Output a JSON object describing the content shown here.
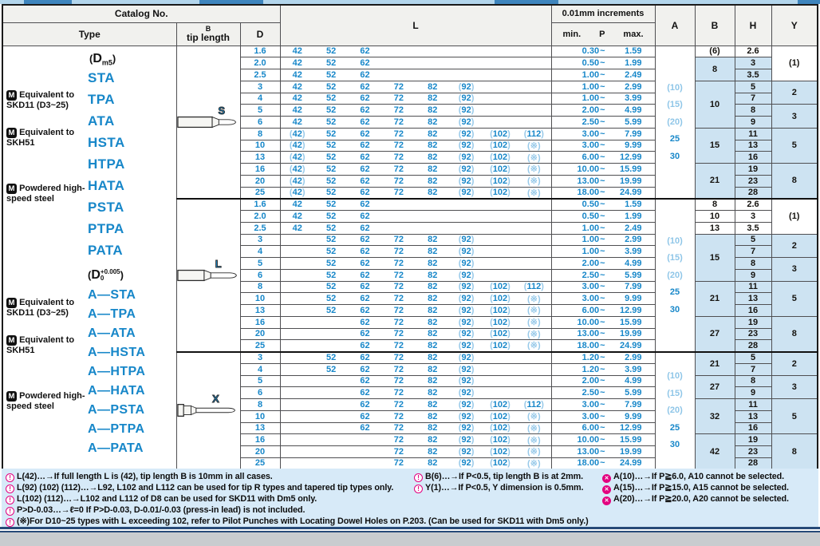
{
  "header": {
    "catalog_no": "Catalog No.",
    "type": "Type",
    "tip_length_top": "B",
    "tip_length_bottom": "tip length",
    "d": "D",
    "l": "L",
    "increments": "0.01mm increments",
    "min_label": "min.",
    "p_label": "P",
    "max_label": "max.",
    "a": "A",
    "b": "B",
    "h": "H",
    "y": "Y"
  },
  "type_column": {
    "groups": [
      {
        "dim_note": {
          "pre": "(",
          "base": "D",
          "sub": "m5",
          "post": ")"
        },
        "materials": [
          {
            "badge": "M",
            "label": "Equivalent to SKD11 (D3~25)",
            "types": [
              "STA",
              "TPA",
              "ATA"
            ]
          },
          {
            "badge": "M",
            "label": "Equivalent to SKH51",
            "types": [
              "HSTA",
              "HTPA",
              "HATA"
            ]
          },
          {
            "badge": "M",
            "label": "Powdered high-speed steel",
            "types": [
              "PSTA",
              "PTPA",
              "PATA"
            ]
          }
        ]
      },
      {
        "dim_note": {
          "pre": "(",
          "base": "D",
          "sup": "+0.005",
          "sub": "0",
          "post": ")"
        },
        "materials": [
          {
            "badge": "M",
            "label": "Equivalent to SKD11 (D3~25)",
            "types": [
              "A—STA",
              "A—TPA",
              "A—ATA"
            ]
          },
          {
            "badge": "M",
            "label": "Equivalent to SKH51",
            "types": [
              "A—HSTA",
              "A—HTPA",
              "A—HATA"
            ]
          },
          {
            "badge": "M",
            "label": "Powdered high-speed steel",
            "types": [
              "A—PSTA",
              "A—PTPA",
              "A—PATA"
            ]
          }
        ]
      }
    ]
  },
  "sections": [
    {
      "tip": "S",
      "a": [
        "(10)",
        "(15)",
        "(20)",
        "25",
        "30"
      ],
      "b": [
        {
          "v": "(6)",
          "s": 1,
          "w": true
        },
        {
          "v": "8",
          "s": 2
        },
        {
          "v": "10",
          "s": 4
        },
        {
          "v": "15",
          "s": 3
        },
        {
          "v": "21",
          "s": 3
        }
      ],
      "y": [
        {
          "v": "(1)",
          "s": 3,
          "w": true
        },
        {
          "v": "2",
          "s": 2
        },
        {
          "v": "3",
          "s": 2
        },
        {
          "v": "5",
          "s": 3
        },
        {
          "v": "8",
          "s": 3
        }
      ],
      "rows": [
        {
          "d": "1.6",
          "l": [
            "42",
            "52",
            "62",
            "",
            "",
            "",
            "",
            ""
          ],
          "p": [
            "0.30",
            "1.59"
          ],
          "h": "2.6",
          "hw": true
        },
        {
          "d": "2.0",
          "l": [
            "42",
            "52",
            "62",
            "",
            "",
            "",
            "",
            ""
          ],
          "p": [
            "0.50",
            "1.99"
          ],
          "h": "3"
        },
        {
          "d": "2.5",
          "l": [
            "42",
            "52",
            "62",
            "",
            "",
            "",
            "",
            ""
          ],
          "p": [
            "1.00",
            "2.49"
          ],
          "h": "3.5"
        },
        {
          "d": "3",
          "l": [
            "42",
            "52",
            "62",
            "72",
            "82",
            "(92)",
            "",
            ""
          ],
          "p": [
            "1.00",
            "2.99"
          ],
          "h": "5"
        },
        {
          "d": "4",
          "l": [
            "42",
            "52",
            "62",
            "72",
            "82",
            "(92)",
            "",
            ""
          ],
          "p": [
            "1.00",
            "3.99"
          ],
          "h": "7"
        },
        {
          "d": "5",
          "l": [
            "42",
            "52",
            "62",
            "72",
            "82",
            "(92)",
            "",
            ""
          ],
          "p": [
            "2.00",
            "4.99"
          ],
          "h": "8"
        },
        {
          "d": "6",
          "l": [
            "42",
            "52",
            "62",
            "72",
            "82",
            "(92)",
            "",
            ""
          ],
          "p": [
            "2.50",
            "5.99"
          ],
          "h": "9"
        },
        {
          "d": "8",
          "l": [
            "(42)",
            "52",
            "62",
            "72",
            "82",
            "(92)",
            "(102)",
            "(112)"
          ],
          "p": [
            "3.00",
            "7.99"
          ],
          "h": "11"
        },
        {
          "d": "10",
          "l": [
            "(42)",
            "52",
            "62",
            "72",
            "82",
            "(92)",
            "(102)",
            "(※)"
          ],
          "p": [
            "3.00",
            "9.99"
          ],
          "h": "13"
        },
        {
          "d": "13",
          "l": [
            "(42)",
            "52",
            "62",
            "72",
            "82",
            "(92)",
            "(102)",
            "(※)"
          ],
          "p": [
            "6.00",
            "12.99"
          ],
          "h": "16"
        },
        {
          "d": "16",
          "l": [
            "(42)",
            "52",
            "62",
            "72",
            "82",
            "(92)",
            "(102)",
            "(※)"
          ],
          "p": [
            "10.00",
            "15.99"
          ],
          "h": "19"
        },
        {
          "d": "20",
          "l": [
            "(42)",
            "52",
            "62",
            "72",
            "82",
            "(92)",
            "(102)",
            "(※)"
          ],
          "p": [
            "13.00",
            "19.99"
          ],
          "h": "23"
        },
        {
          "d": "25",
          "l": [
            "(42)",
            "52",
            "62",
            "72",
            "82",
            "(92)",
            "(102)",
            "(※)"
          ],
          "p": [
            "18.00",
            "24.99"
          ],
          "h": "28"
        }
      ]
    },
    {
      "tip": "L",
      "a": [
        "(10)",
        "(15)",
        "(20)",
        "25",
        "30"
      ],
      "b": [
        {
          "v": "8",
          "s": 1,
          "w": true
        },
        {
          "v": "10",
          "s": 1,
          "w": true
        },
        {
          "v": "13",
          "s": 1,
          "w": true
        },
        {
          "v": "15",
          "s": 4
        },
        {
          "v": "21",
          "s": 3
        },
        {
          "v": "27",
          "s": 3
        }
      ],
      "y": [
        {
          "v": "(1)",
          "s": 3,
          "w": true
        },
        {
          "v": "2",
          "s": 2
        },
        {
          "v": "3",
          "s": 2
        },
        {
          "v": "5",
          "s": 3
        },
        {
          "v": "8",
          "s": 3
        }
      ],
      "rows": [
        {
          "d": "1.6",
          "l": [
            "42",
            "52",
            "62",
            "",
            "",
            "",
            "",
            ""
          ],
          "p": [
            "0.50",
            "1.59"
          ],
          "h": "2.6",
          "hw": true
        },
        {
          "d": "2.0",
          "l": [
            "42",
            "52",
            "62",
            "",
            "",
            "",
            "",
            ""
          ],
          "p": [
            "0.50",
            "1.99"
          ],
          "h": "3",
          "hw": true
        },
        {
          "d": "2.5",
          "l": [
            "42",
            "52",
            "62",
            "",
            "",
            "",
            "",
            ""
          ],
          "p": [
            "1.00",
            "2.49"
          ],
          "h": "3.5",
          "hw": true
        },
        {
          "d": "3",
          "l": [
            "",
            "52",
            "62",
            "72",
            "82",
            "(92)",
            "",
            ""
          ],
          "p": [
            "1.00",
            "2.99"
          ],
          "h": "5"
        },
        {
          "d": "4",
          "l": [
            "",
            "52",
            "62",
            "72",
            "82",
            "(92)",
            "",
            ""
          ],
          "p": [
            "1.00",
            "3.99"
          ],
          "h": "7"
        },
        {
          "d": "5",
          "l": [
            "",
            "52",
            "62",
            "72",
            "82",
            "(92)",
            "",
            ""
          ],
          "p": [
            "2.00",
            "4.99"
          ],
          "h": "8"
        },
        {
          "d": "6",
          "l": [
            "",
            "52",
            "62",
            "72",
            "82",
            "(92)",
            "",
            ""
          ],
          "p": [
            "2.50",
            "5.99"
          ],
          "h": "9"
        },
        {
          "d": "8",
          "l": [
            "",
            "52",
            "62",
            "72",
            "82",
            "(92)",
            "(102)",
            "(112)"
          ],
          "p": [
            "3.00",
            "7.99"
          ],
          "h": "11"
        },
        {
          "d": "10",
          "l": [
            "",
            "52",
            "62",
            "72",
            "82",
            "(92)",
            "(102)",
            "(※)"
          ],
          "p": [
            "3.00",
            "9.99"
          ],
          "h": "13"
        },
        {
          "d": "13",
          "l": [
            "",
            "52",
            "62",
            "72",
            "82",
            "(92)",
            "(102)",
            "(※)"
          ],
          "p": [
            "6.00",
            "12.99"
          ],
          "h": "16"
        },
        {
          "d": "16",
          "l": [
            "",
            "",
            "62",
            "72",
            "82",
            "(92)",
            "(102)",
            "(※)"
          ],
          "p": [
            "10.00",
            "15.99"
          ],
          "h": "19"
        },
        {
          "d": "20",
          "l": [
            "",
            "",
            "62",
            "72",
            "82",
            "(92)",
            "(102)",
            "(※)"
          ],
          "p": [
            "13.00",
            "19.99"
          ],
          "h": "23"
        },
        {
          "d": "25",
          "l": [
            "",
            "",
            "62",
            "72",
            "82",
            "(92)",
            "(102)",
            "(※)"
          ],
          "p": [
            "18.00",
            "24.99"
          ],
          "h": "28"
        }
      ]
    },
    {
      "tip": "X",
      "a": [
        "(10)",
        "(15)",
        "(20)",
        "25",
        "30"
      ],
      "b": [
        {
          "v": "21",
          "s": 2
        },
        {
          "v": "27",
          "s": 2
        },
        {
          "v": "32",
          "s": 3
        },
        {
          "v": "42",
          "s": 3
        }
      ],
      "y": [
        {
          "v": "2",
          "s": 2
        },
        {
          "v": "3",
          "s": 2
        },
        {
          "v": "5",
          "s": 3
        },
        {
          "v": "8",
          "s": 3
        }
      ],
      "rows": [
        {
          "d": "3",
          "l": [
            "",
            "52",
            "62",
            "72",
            "82",
            "(92)",
            "",
            ""
          ],
          "p": [
            "1.20",
            "2.99"
          ],
          "h": "5"
        },
        {
          "d": "4",
          "l": [
            "",
            "52",
            "62",
            "72",
            "82",
            "(92)",
            "",
            ""
          ],
          "p": [
            "1.20",
            "3.99"
          ],
          "h": "7"
        },
        {
          "d": "5",
          "l": [
            "",
            "",
            "62",
            "72",
            "82",
            "(92)",
            "",
            ""
          ],
          "p": [
            "2.00",
            "4.99"
          ],
          "h": "8"
        },
        {
          "d": "6",
          "l": [
            "",
            "",
            "62",
            "72",
            "82",
            "(92)",
            "",
            ""
          ],
          "p": [
            "2.50",
            "5.99"
          ],
          "h": "9"
        },
        {
          "d": "8",
          "l": [
            "",
            "",
            "62",
            "72",
            "82",
            "(92)",
            "(102)",
            "(112)"
          ],
          "p": [
            "3.00",
            "7.99"
          ],
          "h": "11"
        },
        {
          "d": "10",
          "l": [
            "",
            "",
            "62",
            "72",
            "82",
            "(92)",
            "(102)",
            "(※)"
          ],
          "p": [
            "3.00",
            "9.99"
          ],
          "h": "13"
        },
        {
          "d": "13",
          "l": [
            "",
            "",
            "62",
            "72",
            "82",
            "(92)",
            "(102)",
            "(※)"
          ],
          "p": [
            "6.00",
            "12.99"
          ],
          "h": "16"
        },
        {
          "d": "16",
          "l": [
            "",
            "",
            "",
            "72",
            "82",
            "(92)",
            "(102)",
            "(※)"
          ],
          "p": [
            "10.00",
            "15.99"
          ],
          "h": "19"
        },
        {
          "d": "20",
          "l": [
            "",
            "",
            "",
            "72",
            "82",
            "(92)",
            "(102)",
            "(※)"
          ],
          "p": [
            "13.00",
            "19.99"
          ],
          "h": "23"
        },
        {
          "d": "25",
          "l": [
            "",
            "",
            "",
            "72",
            "82",
            "(92)",
            "(102)",
            "(※)"
          ],
          "p": [
            "18.00",
            "24.99"
          ],
          "h": "28"
        }
      ]
    }
  ],
  "notes": {
    "left": [
      {
        "icon": "caution",
        "text": "L(42)…→If full length L is (42), tip length B is 10mm in all cases."
      },
      {
        "icon": "caution",
        "text": "L(92) (102) (112)…→L92, L102 and L112 can be used for tip R types and tapered tip types only."
      },
      {
        "icon": "caution",
        "text": "L(102) (112)…→L102 and L112 of D8 can be used for SKD11 with Dm5 only."
      },
      {
        "icon": "caution",
        "text": "P>D-0.03…→ℓ=0   If P>D-0.03, D-0.01/-0.03 (press-in lead) is not included."
      },
      {
        "icon": "caution",
        "text": "(※)For D10~25 types with L exceeding 102, refer to Pilot Punches with Locating Dowel Holes on P.203. (Can be used for SKD11 with Dm5 only.)"
      }
    ],
    "middle": [
      {
        "icon": "caution",
        "text": "B(6)…→If P<0.5, tip length B is at 2mm."
      },
      {
        "icon": "caution",
        "text": "Y(1)…→If P<0.5, Y dimension is 0.5mm."
      }
    ],
    "right": [
      {
        "icon": "cross",
        "text": "A(10)…→If P≧6.0, A10 cannot be selected."
      },
      {
        "icon": "cross",
        "text": "A(15)…→If P≧15.0, A15 cannot be selected."
      },
      {
        "icon": "cross",
        "text": "A(20)…→If P≧20.0, A20 cannot be selected."
      }
    ]
  },
  "colors": {
    "accent_blue": "#1787c9",
    "light_paren_blue": "#97c9e9",
    "cell_blue_bg": "#cde3f2",
    "note_pink": "#e3007f",
    "notes_bg": "#d7eaf8"
  }
}
